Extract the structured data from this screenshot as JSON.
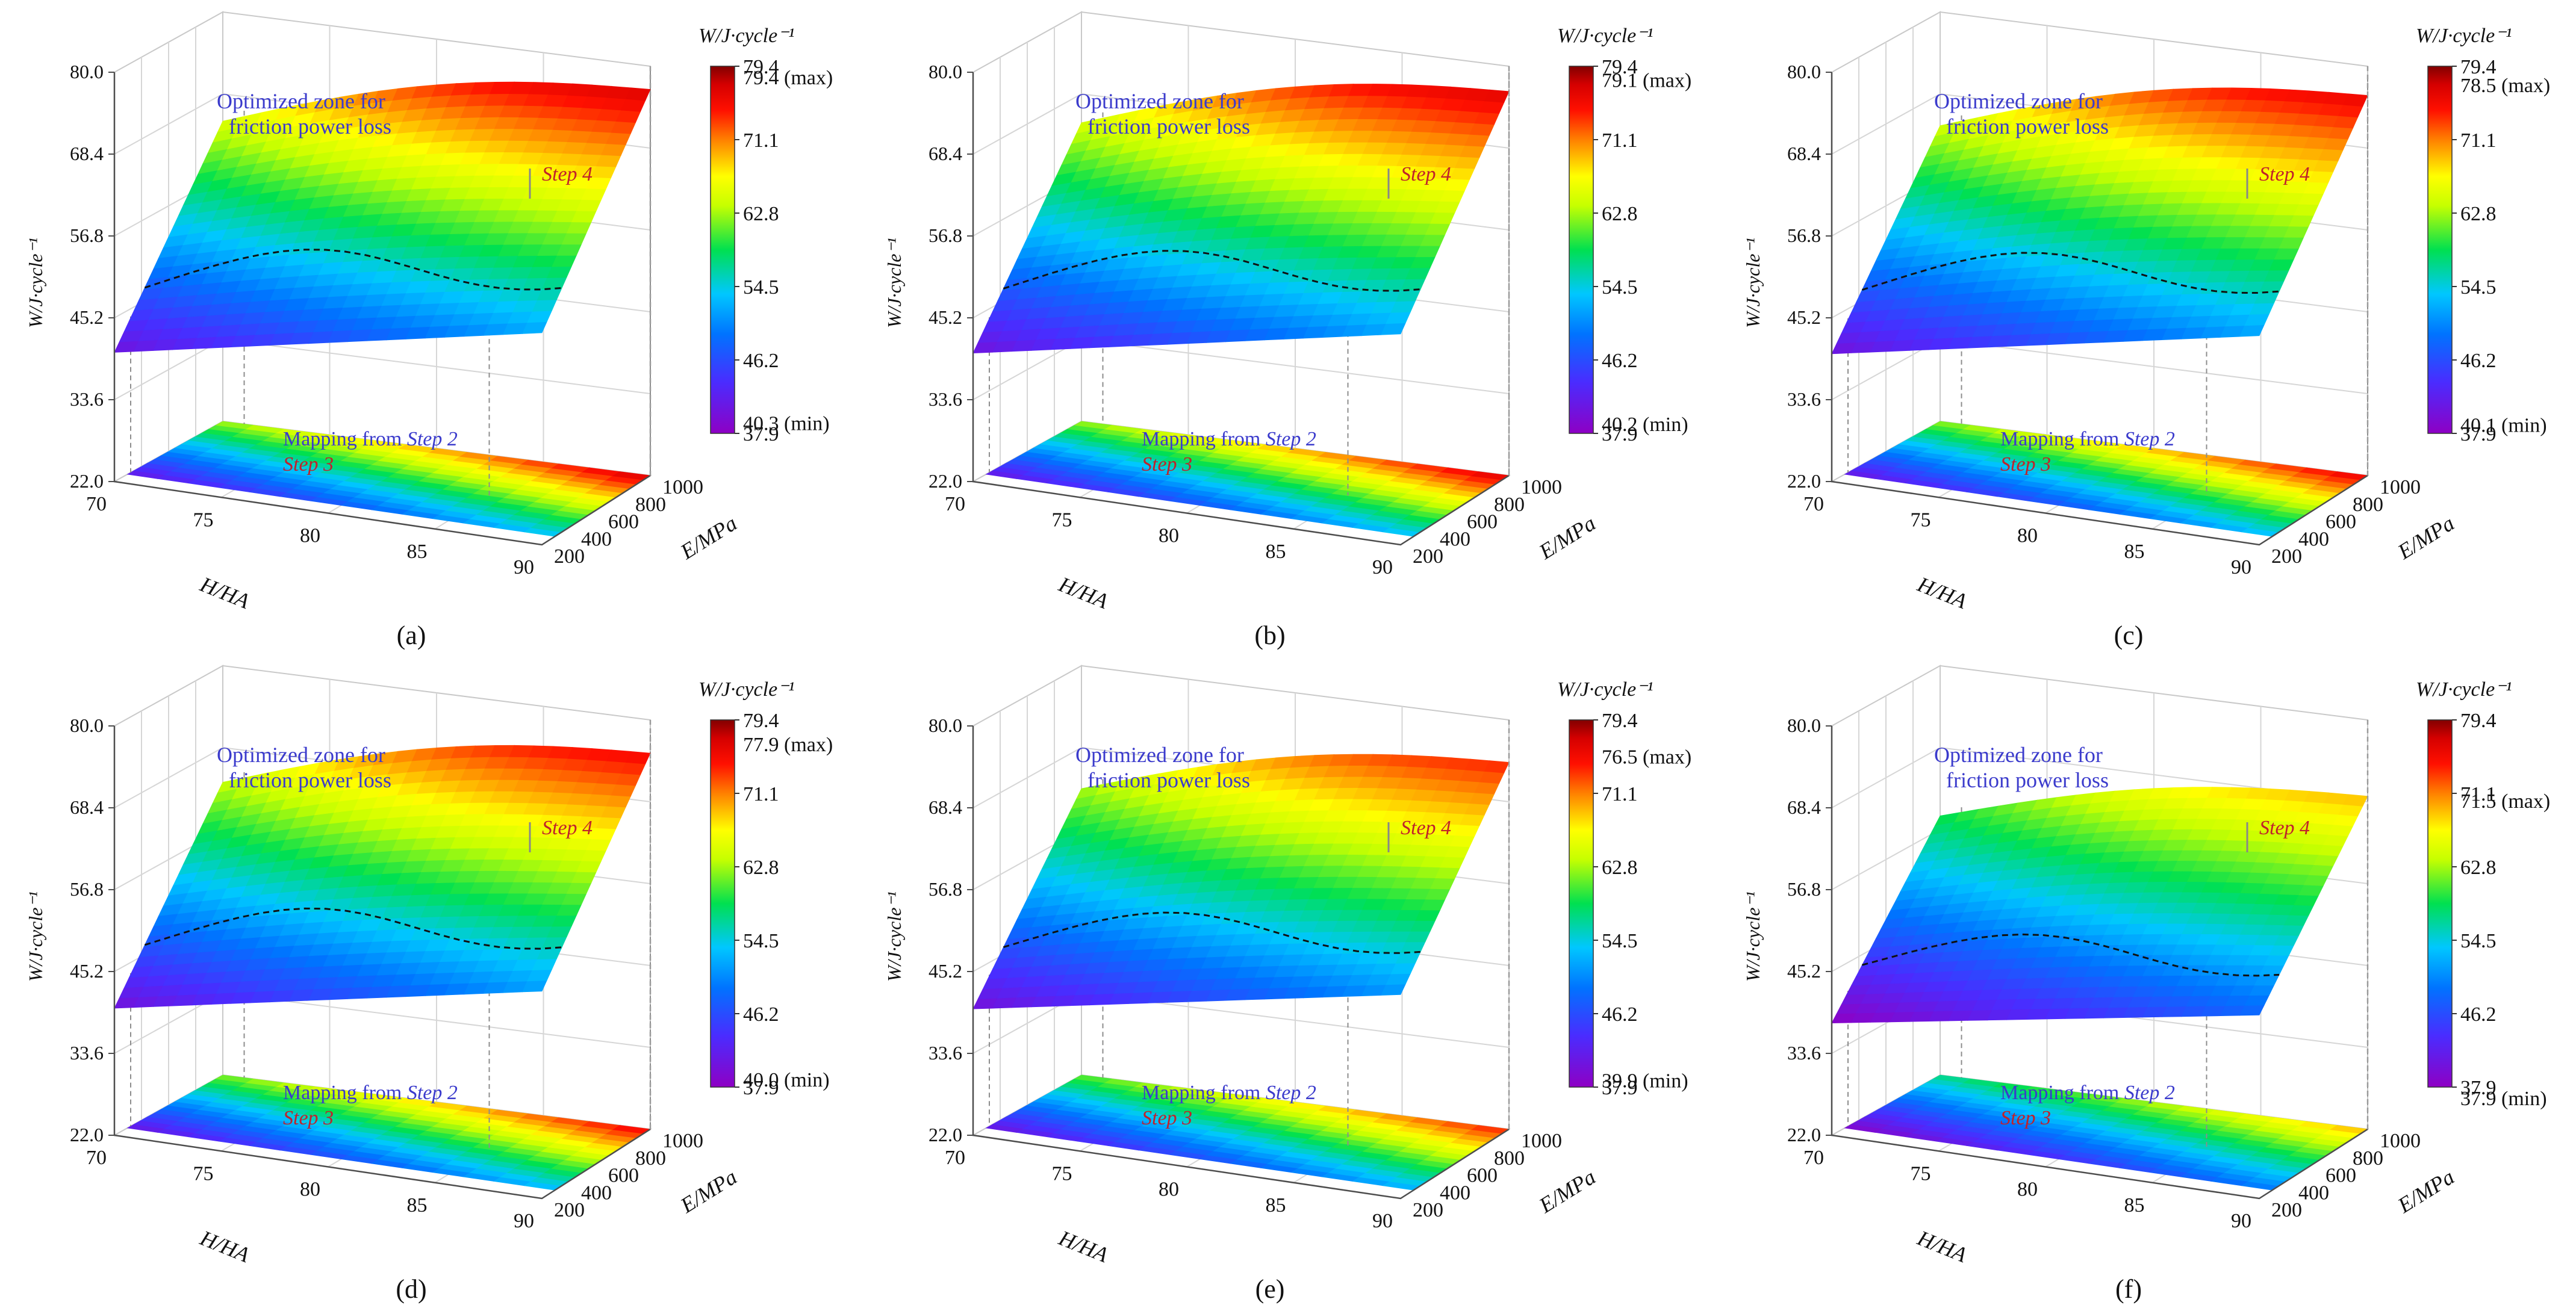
{
  "figure": {
    "description_panels": 6
  },
  "chart_data": [
    {
      "type": "surface3d",
      "panel_label": "(a)",
      "zlabel": "W/J·cycle⁻¹",
      "xlabel": "H/HA",
      "ylabel": "E/MPa",
      "x_ticks": [
        "70",
        "75",
        "80",
        "85",
        "90"
      ],
      "y_ticks": [
        "200",
        "400",
        "600",
        "800",
        "1000"
      ],
      "z_ticks": [
        "22.0",
        "33.6",
        "45.2",
        "56.8",
        "68.4",
        "80.0"
      ],
      "colorbar": {
        "title": "W/J·cycle⁻¹",
        "ticks": [
          "79.4",
          "71.1",
          "62.8",
          "54.5",
          "46.2",
          "37.9"
        ],
        "max_label": "79.4 (max)",
        "min_label": "40.3 (min)",
        "max_value": 79.4,
        "min_value": 40.3
      },
      "annotations": {
        "optimized_zone": [
          "Optimized zone for",
          "friction power loss"
        ],
        "step4": "Step 4",
        "mapping_prefix": "Mapping from ",
        "mapping_step": "Step 2",
        "step3": "Step 3"
      },
      "surface": {
        "z_min": 40.3,
        "z_max": 79.4
      }
    },
    {
      "type": "surface3d",
      "panel_label": "(b)",
      "zlabel": "W/J·cycle⁻¹",
      "xlabel": "H/HA",
      "ylabel": "E/MPa",
      "x_ticks": [
        "70",
        "75",
        "80",
        "85",
        "90"
      ],
      "y_ticks": [
        "200",
        "400",
        "600",
        "800",
        "1000"
      ],
      "z_ticks": [
        "22.0",
        "33.6",
        "45.2",
        "56.8",
        "68.4",
        "80.0"
      ],
      "colorbar": {
        "title": "W/J·cycle⁻¹",
        "ticks": [
          "79.4",
          "71.1",
          "62.8",
          "54.5",
          "46.2",
          "37.9"
        ],
        "max_label": "79.1 (max)",
        "min_label": "40.2 (min)",
        "max_value": 79.1,
        "min_value": 40.2
      },
      "annotations": {
        "optimized_zone": [
          "Optimized zone for",
          "friction power loss"
        ],
        "step4": "Step 4",
        "mapping_prefix": "Mapping from ",
        "mapping_step": "Step 2",
        "step3": "Step 3"
      },
      "surface": {
        "z_min": 40.2,
        "z_max": 79.1
      }
    },
    {
      "type": "surface3d",
      "panel_label": "(c)",
      "zlabel": "W/J·cycle⁻¹",
      "xlabel": "H/HA",
      "ylabel": "E/MPa",
      "x_ticks": [
        "70",
        "75",
        "80",
        "85",
        "90"
      ],
      "y_ticks": [
        "200",
        "400",
        "600",
        "800",
        "1000"
      ],
      "z_ticks": [
        "22.0",
        "33.6",
        "45.2",
        "56.8",
        "68.4",
        "80.0"
      ],
      "colorbar": {
        "title": "W/J·cycle⁻¹",
        "ticks": [
          "79.4",
          "71.1",
          "62.8",
          "54.5",
          "46.2",
          "37.9"
        ],
        "max_label": "78.5 (max)",
        "min_label": "40.1 (min)",
        "max_value": 78.5,
        "min_value": 40.1
      },
      "annotations": {
        "optimized_zone": [
          "Optimized zone for",
          "friction power loss"
        ],
        "step4": "Step 4",
        "mapping_prefix": "Mapping from ",
        "mapping_step": "Step 2",
        "step3": "Step 3"
      },
      "surface": {
        "z_min": 40.1,
        "z_max": 78.5
      }
    },
    {
      "type": "surface3d",
      "panel_label": "(d)",
      "zlabel": "W/J·cycle⁻¹",
      "xlabel": "H/HA",
      "ylabel": "E/MPa",
      "x_ticks": [
        "70",
        "75",
        "80",
        "85",
        "90"
      ],
      "y_ticks": [
        "200",
        "400",
        "600",
        "800",
        "1000"
      ],
      "z_ticks": [
        "22.0",
        "33.6",
        "45.2",
        "56.8",
        "68.4",
        "80.0"
      ],
      "colorbar": {
        "title": "W/J·cycle⁻¹",
        "ticks": [
          "79.4",
          "71.1",
          "62.8",
          "54.5",
          "46.2",
          "37.9"
        ],
        "max_label": "77.9 (max)",
        "min_label": "40.0 (min)",
        "max_value": 77.9,
        "min_value": 40.0
      },
      "annotations": {
        "optimized_zone": [
          "Optimized zone for",
          "friction power loss"
        ],
        "step4": "Step 4",
        "mapping_prefix": "Mapping from ",
        "mapping_step": "Step 2",
        "step3": "Step 3"
      },
      "surface": {
        "z_min": 40.0,
        "z_max": 77.9
      }
    },
    {
      "type": "surface3d",
      "panel_label": "(e)",
      "zlabel": "W/J·cycle⁻¹",
      "xlabel": "H/HA",
      "ylabel": "E/MPa",
      "x_ticks": [
        "70",
        "75",
        "80",
        "85",
        "90"
      ],
      "y_ticks": [
        "200",
        "400",
        "600",
        "800",
        "1000"
      ],
      "z_ticks": [
        "22.0",
        "33.6",
        "45.2",
        "56.8",
        "68.4",
        "80.0"
      ],
      "colorbar": {
        "title": "W/J·cycle⁻¹",
        "ticks": [
          "79.4",
          "71.1",
          "62.8",
          "54.5",
          "46.2",
          "37.9"
        ],
        "max_label": "76.5 (max)",
        "min_label": "39.9 (min)",
        "max_value": 76.5,
        "min_value": 39.9
      },
      "annotations": {
        "optimized_zone": [
          "Optimized zone for",
          "friction power loss"
        ],
        "step4": "Step 4",
        "mapping_prefix": "Mapping from ",
        "mapping_step": "Step 2",
        "step3": "Step 3"
      },
      "surface": {
        "z_min": 39.9,
        "z_max": 76.5
      }
    },
    {
      "type": "surface3d",
      "panel_label": "(f)",
      "zlabel": "W/J·cycle⁻¹",
      "xlabel": "H/HA",
      "ylabel": "E/MPa",
      "x_ticks": [
        "70",
        "75",
        "80",
        "85",
        "90"
      ],
      "y_ticks": [
        "200",
        "400",
        "600",
        "800",
        "1000"
      ],
      "z_ticks": [
        "22.0",
        "33.6",
        "45.2",
        "56.8",
        "68.4",
        "80.0"
      ],
      "colorbar": {
        "title": "W/J·cycle⁻¹",
        "ticks": [
          "79.4",
          "71.1",
          "62.8",
          "54.5",
          "46.2",
          "37.9"
        ],
        "max_label": "71.5 (max)",
        "min_label": "37.9 (min)",
        "max_value": 71.5,
        "min_value": 37.9
      },
      "annotations": {
        "optimized_zone": [
          "Optimized zone for",
          "friction power loss"
        ],
        "step4": "Step 4",
        "mapping_prefix": "Mapping from ",
        "mapping_step": "Step 2",
        "step3": "Step 3"
      },
      "surface": {
        "z_min": 37.9,
        "z_max": 71.5
      }
    }
  ]
}
